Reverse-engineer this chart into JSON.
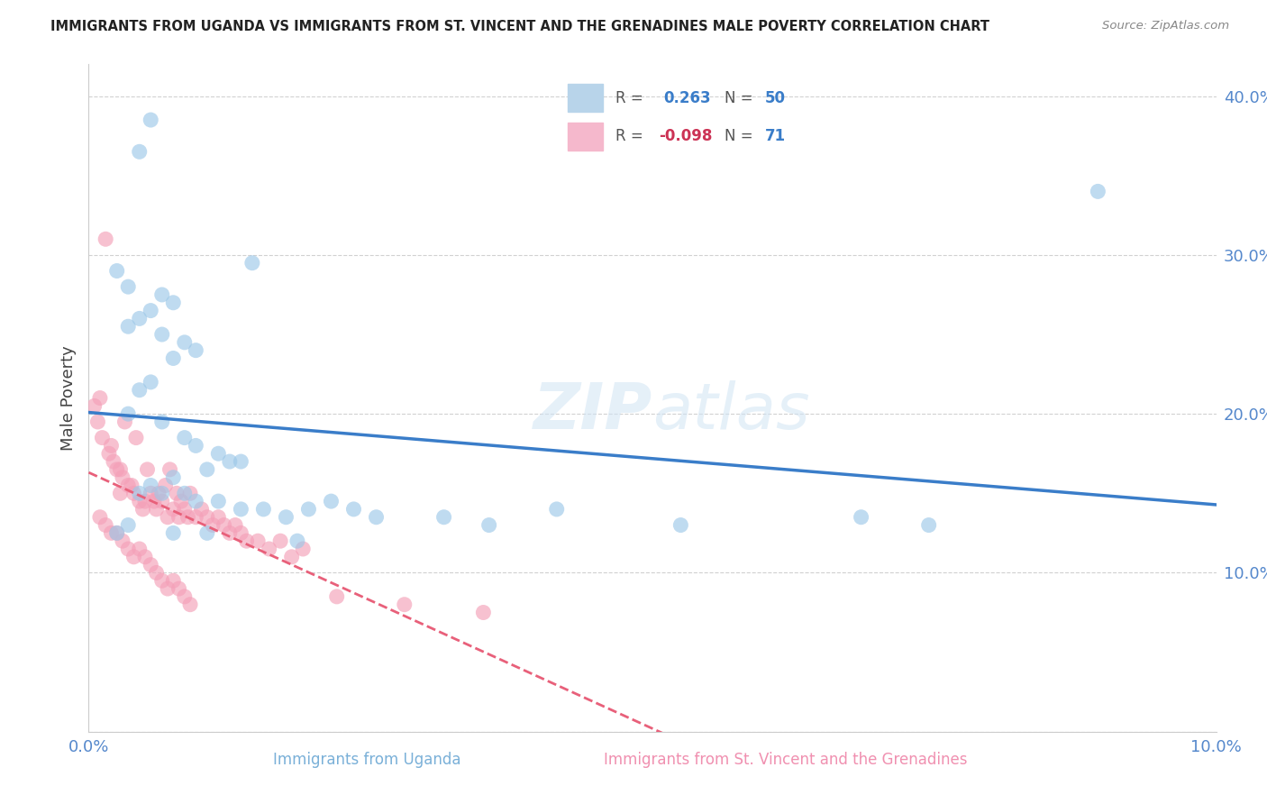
{
  "title": "IMMIGRANTS FROM UGANDA VS IMMIGRANTS FROM ST. VINCENT AND THE GRENADINES MALE POVERTY CORRELATION CHART",
  "source": "Source: ZipAtlas.com",
  "ylabel": "Male Poverty",
  "xlim": [
    0.0,
    10.0
  ],
  "ylim": [
    0.0,
    42.0
  ],
  "r_uganda": 0.263,
  "n_uganda": 50,
  "r_stvincent": -0.098,
  "n_stvincent": 71,
  "blue_scatter_color": "#9dc8e8",
  "pink_scatter_color": "#f4a0b8",
  "blue_line_color": "#3a7dc9",
  "pink_line_color": "#e8607a",
  "watermark_text": "ZIPatlas",
  "watermark_color": "#d0e4f4",
  "background_color": "#ffffff",
  "grid_color": "#cccccc",
  "title_color": "#222222",
  "source_color": "#888888",
  "ylabel_color": "#444444",
  "tick_color": "#5588cc",
  "legend_r_color": "#555555",
  "legend_val_color": "#3a7dc9",
  "legend_neg_color": "#cc3355",
  "bottom_legend_blue_color": "#7ab0d8",
  "bottom_legend_pink_color": "#f090b0",
  "uganda_x": [
    0.55,
    0.45,
    1.45,
    0.25,
    0.35,
    0.65,
    0.75,
    0.55,
    0.45,
    0.35,
    0.65,
    0.85,
    0.95,
    0.75,
    0.55,
    0.45,
    0.35,
    0.65,
    0.85,
    0.95,
    1.15,
    1.25,
    1.35,
    1.05,
    0.75,
    0.55,
    0.45,
    0.65,
    0.85,
    0.95,
    1.15,
    1.35,
    1.55,
    1.75,
    1.95,
    2.15,
    2.35,
    2.55,
    3.15,
    3.55,
    4.15,
    5.25,
    6.85,
    7.45,
    8.95,
    0.35,
    0.25,
    0.75,
    1.05,
    1.85
  ],
  "uganda_y": [
    38.5,
    36.5,
    29.5,
    29.0,
    28.0,
    27.5,
    27.0,
    26.5,
    26.0,
    25.5,
    25.0,
    24.5,
    24.0,
    23.5,
    22.0,
    21.5,
    20.0,
    19.5,
    18.5,
    18.0,
    17.5,
    17.0,
    17.0,
    16.5,
    16.0,
    15.5,
    15.0,
    15.0,
    15.0,
    14.5,
    14.5,
    14.0,
    14.0,
    13.5,
    14.0,
    14.5,
    14.0,
    13.5,
    13.5,
    13.0,
    14.0,
    13.0,
    13.5,
    13.0,
    34.0,
    13.0,
    12.5,
    12.5,
    12.5,
    12.0
  ],
  "stvincent_x": [
    0.05,
    0.08,
    0.1,
    0.12,
    0.15,
    0.18,
    0.2,
    0.22,
    0.25,
    0.28,
    0.3,
    0.32,
    0.35,
    0.38,
    0.4,
    0.42,
    0.45,
    0.48,
    0.5,
    0.52,
    0.55,
    0.58,
    0.6,
    0.62,
    0.65,
    0.68,
    0.7,
    0.72,
    0.75,
    0.78,
    0.8,
    0.82,
    0.85,
    0.88,
    0.9,
    0.95,
    1.0,
    1.05,
    1.1,
    1.15,
    1.2,
    1.25,
    1.3,
    1.35,
    1.4,
    1.5,
    1.6,
    1.7,
    1.8,
    1.9,
    0.1,
    0.15,
    0.2,
    0.25,
    0.3,
    0.35,
    0.4,
    0.45,
    0.5,
    0.55,
    0.6,
    0.65,
    0.7,
    0.75,
    0.8,
    0.85,
    0.9,
    2.2,
    2.8,
    3.5,
    0.28
  ],
  "stvincent_y": [
    20.5,
    19.5,
    21.0,
    18.5,
    31.0,
    17.5,
    18.0,
    17.0,
    16.5,
    16.5,
    16.0,
    19.5,
    15.5,
    15.5,
    15.0,
    18.5,
    14.5,
    14.0,
    14.5,
    16.5,
    15.0,
    14.5,
    14.0,
    15.0,
    14.5,
    15.5,
    13.5,
    16.5,
    14.0,
    15.0,
    13.5,
    14.5,
    14.0,
    13.5,
    15.0,
    13.5,
    14.0,
    13.5,
    13.0,
    13.5,
    13.0,
    12.5,
    13.0,
    12.5,
    12.0,
    12.0,
    11.5,
    12.0,
    11.0,
    11.5,
    13.5,
    13.0,
    12.5,
    12.5,
    12.0,
    11.5,
    11.0,
    11.5,
    11.0,
    10.5,
    10.0,
    9.5,
    9.0,
    9.5,
    9.0,
    8.5,
    8.0,
    8.5,
    8.0,
    7.5,
    15.0
  ]
}
